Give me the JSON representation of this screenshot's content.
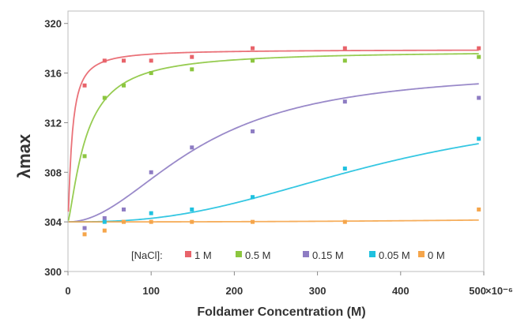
{
  "chart_data": {
    "type": "scatter",
    "xlabel": "Foldamer Concentration (M)",
    "ylabel": "λmax",
    "x_scale_label": "×10⁻⁶",
    "xlim": [
      0,
      500
    ],
    "ylim": [
      300,
      321
    ],
    "x_ticks": [
      0,
      100,
      200,
      300,
      400,
      500
    ],
    "x_tick_labels": [
      "0",
      "100",
      "200",
      "300",
      "400",
      "500"
    ],
    "y_ticks": [
      300,
      304,
      308,
      312,
      316,
      320
    ],
    "y_tick_labels": [
      "300",
      "304",
      "308",
      "312",
      "316",
      "320"
    ],
    "legend_title": "[NaCl]:",
    "legend_position": "bottom-center",
    "series": [
      {
        "name": "1 M",
        "color": "#e8636a",
        "x": [
          20,
          44,
          67,
          100,
          149,
          222,
          333,
          494
        ],
        "y": [
          315,
          317,
          317,
          317,
          317.3,
          318,
          318,
          318
        ],
        "fit": {
          "baseline": 304,
          "plateau": 317.9,
          "k": 5,
          "n": 1.2
        }
      },
      {
        "name": "0.5 M",
        "color": "#8cc63f",
        "x": [
          20,
          44,
          67,
          100,
          149,
          222,
          333,
          494
        ],
        "y": [
          309.3,
          314,
          315,
          316,
          316.3,
          317,
          317,
          317.3
        ],
        "fit": {
          "baseline": 304,
          "plateau": 317.8,
          "k": 22,
          "n": 1.3
        }
      },
      {
        "name": "0.15 M",
        "color": "#8e7cc3",
        "x": [
          20,
          44,
          67,
          100,
          149,
          222,
          333,
          494
        ],
        "y": [
          303.5,
          304.3,
          305,
          308,
          310,
          311.3,
          313.7,
          314
        ],
        "fit": {
          "baseline": 304,
          "plateau": 316.3,
          "k": 160,
          "n": 2
        }
      },
      {
        "name": "0.05 M",
        "color": "#1fc1df",
        "x": [
          44,
          100,
          149,
          222,
          333,
          494
        ],
        "y": [
          304,
          304.7,
          305,
          306,
          308.3,
          310.7
        ],
        "fit": {
          "baseline": 304,
          "plateau": 313.5,
          "k": 380,
          "n": 2.6
        }
      },
      {
        "name": "0 M",
        "color": "#f5a54a",
        "x": [
          20,
          44,
          67,
          100,
          149,
          222,
          333,
          494
        ],
        "y": [
          303,
          303.3,
          304,
          304,
          304,
          304,
          304,
          305
        ],
        "fit": {
          "baseline": 304,
          "plateau": 305,
          "k": 1000,
          "n": 2.5
        }
      }
    ]
  }
}
